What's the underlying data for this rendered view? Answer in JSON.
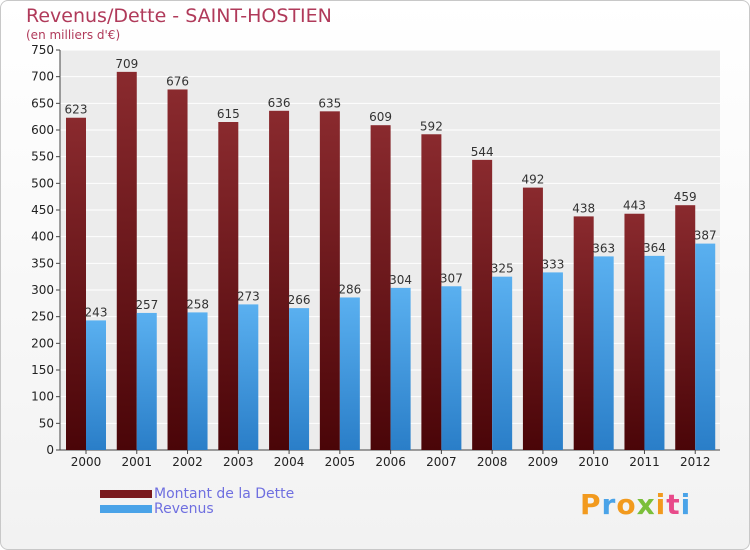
{
  "chart_data": {
    "type": "bar",
    "title": "Revenus/Dette - SAINT-HOSTIEN",
    "subtitle": "(en milliers d'€)",
    "categories": [
      "2000",
      "2001",
      "2002",
      "2003",
      "2004",
      "2005",
      "2006",
      "2007",
      "2008",
      "2009",
      "2010",
      "2011",
      "2012"
    ],
    "series": [
      {
        "name": "Montant de la Dette",
        "color": "#7a1a1e",
        "values": [
          623,
          709,
          676,
          615,
          636,
          635,
          609,
          592,
          544,
          492,
          438,
          443,
          459
        ]
      },
      {
        "name": "Revenus",
        "color": "#4aa3e8",
        "values": [
          243,
          257,
          258,
          273,
          266,
          286,
          304,
          307,
          325,
          333,
          363,
          364,
          387
        ]
      }
    ],
    "ylim": [
      0,
      750
    ],
    "yticks": [
      0,
      50,
      100,
      150,
      200,
      250,
      300,
      350,
      400,
      450,
      500,
      550,
      600,
      650,
      700,
      750
    ],
    "grid": true,
    "legend_position": "bottom-left"
  },
  "logo": {
    "text": "Proxiti",
    "colors": [
      "#f29a1e",
      "#4aa3e8",
      "#f29a1e",
      "#7bbf3a",
      "#f29a1e",
      "#e84a8a",
      "#4aa3e8"
    ]
  }
}
